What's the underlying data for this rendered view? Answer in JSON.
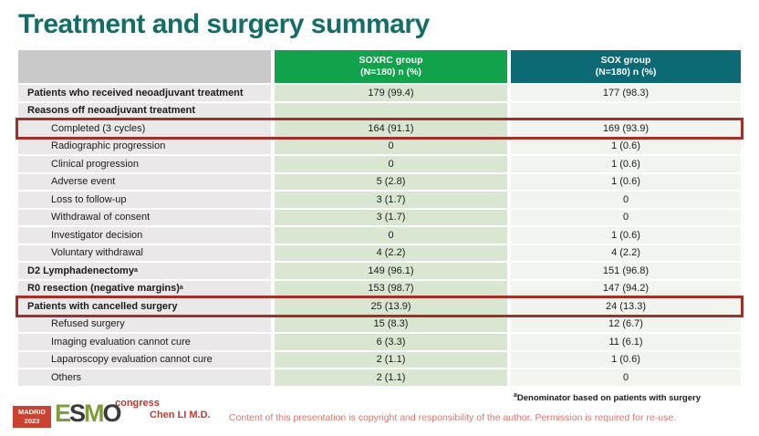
{
  "slide": {
    "title": "Treatment and surgery summary"
  },
  "table": {
    "header": {
      "col_label": "",
      "soxrc_line1": "SOXRC group",
      "soxrc_line2": "(N=180)  n (%)",
      "sox_line1": "SOX group",
      "sox_line2": "(N=180)  n (%)"
    },
    "rows": [
      {
        "label": "Patients who received neoadjuvant treatment",
        "soxrc": "179 (99.4)",
        "sox": "177 (98.3)",
        "bold": true,
        "indent": false,
        "highlight": false
      },
      {
        "label": "Reasons off neoadjuvant treatment",
        "soxrc": "",
        "sox": "",
        "bold": true,
        "indent": false,
        "highlight": false
      },
      {
        "label": "Completed (3 cycles)",
        "soxrc": "164 (91.1)",
        "sox": "169 (93.9)",
        "bold": false,
        "indent": true,
        "highlight": true
      },
      {
        "label": "Radiographic progression",
        "soxrc": "0",
        "sox": "1 (0.6)",
        "bold": false,
        "indent": true,
        "highlight": false
      },
      {
        "label": "Clinical progression",
        "soxrc": "0",
        "sox": "1 (0.6)",
        "bold": false,
        "indent": true,
        "highlight": false
      },
      {
        "label": "Adverse event",
        "soxrc": "5 (2.8)",
        "sox": "1 (0.6)",
        "bold": false,
        "indent": true,
        "highlight": false
      },
      {
        "label": "Loss to follow-up",
        "soxrc": "3 (1.7)",
        "sox": "0",
        "bold": false,
        "indent": true,
        "highlight": false
      },
      {
        "label": "Withdrawal of consent",
        "soxrc": "3 (1.7)",
        "sox": "0",
        "bold": false,
        "indent": true,
        "highlight": false
      },
      {
        "label": "Investigator decision",
        "soxrc": "0",
        "sox": "1 (0.6)",
        "bold": false,
        "indent": true,
        "highlight": false
      },
      {
        "label": "Voluntary withdrawal",
        "soxrc": "4 (2.2)",
        "sox": "4 (2.2)",
        "bold": false,
        "indent": true,
        "highlight": false
      },
      {
        "label": "D2 Lymphadenectomy",
        "sup": "a",
        "soxrc": "149 (96.1)",
        "sox": "151 (96.8)",
        "bold": true,
        "indent": false,
        "highlight": false
      },
      {
        "label": "R0 resection (negative margins)",
        "sup": "a",
        "soxrc": "153 (98.7)",
        "sox": "147 (94.2)",
        "bold": true,
        "indent": false,
        "highlight": false
      },
      {
        "label": "Patients with cancelled surgery",
        "soxrc": "25 (13.9)",
        "sox": "24 (13.3)",
        "bold": true,
        "indent": false,
        "highlight": true
      },
      {
        "label": "Refused surgery",
        "soxrc": "15 (8.3)",
        "sox": "12 (6.7)",
        "bold": false,
        "indent": true,
        "highlight": false
      },
      {
        "label": "Imaging evaluation cannot cure",
        "soxrc": "6 (3.3)",
        "sox": "11 (6.1)",
        "bold": false,
        "indent": true,
        "highlight": false
      },
      {
        "label": "Laparoscopy evaluation cannot cure",
        "soxrc": "2 (1.1)",
        "sox": "1 (0.6)",
        "bold": false,
        "indent": true,
        "highlight": false
      },
      {
        "label": "Others",
        "soxrc": "2 (1.1)",
        "sox": "0",
        "bold": false,
        "indent": true,
        "highlight": false
      }
    ]
  },
  "footer": {
    "footnote_sup": "a",
    "footnote": "Denominator based on patients with surgery",
    "presenter": "Chen LI M.D.",
    "copyright": "Content of this presentation is copyright and responsibility of the author. Permission is required for re-use.",
    "logo": {
      "venue": "MADRID",
      "year": "2023",
      "brand_letters": [
        {
          "ch": "E",
          "color": "#7f9c3a"
        },
        {
          "ch": "S",
          "color": "#3a3a3a"
        },
        {
          "ch": "M",
          "color": "#7f9c3a"
        },
        {
          "ch": "O",
          "color": "#3a3a3a"
        }
      ],
      "suffix": "congress"
    }
  },
  "colors": {
    "title_teal": "#136e68",
    "header_green": "#12a24b",
    "header_teal": "#0b6a73",
    "highlight_red": "#a33026",
    "label_cell": "#eae8e9",
    "soxrc_cell": "#d9e6d2",
    "sox_cell": "#f1f4ef"
  }
}
